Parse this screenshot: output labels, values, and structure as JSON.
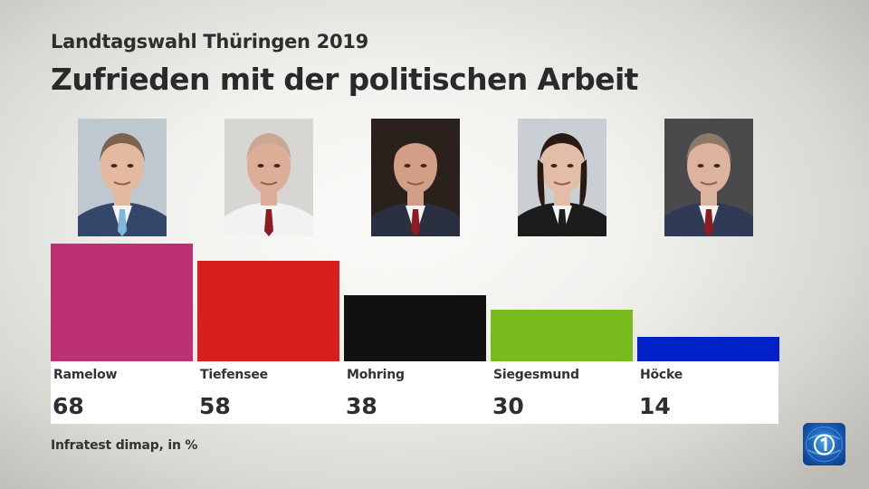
{
  "header": {
    "subtitle": "Landtagswahl Thüringen 2019",
    "title": "Zufrieden mit der politischen Arbeit"
  },
  "candidates": [
    {
      "name": "Ramelow",
      "photo": "Portrait Ramelow"
    },
    {
      "name": "Tiefensee",
      "photo": "Portrait Tiefensee"
    },
    {
      "name": "Mohring",
      "photo": "Portrait Mohring"
    },
    {
      "name": "Siegesmund",
      "photo": "Portrait Siegesmund"
    },
    {
      "name": "Höcke",
      "photo": "Portrait Höcke"
    }
  ],
  "chart_data": {
    "type": "bar",
    "title": "Zufrieden mit der politischen Arbeit",
    "subtitle": "Landtagswahl Thüringen 2019",
    "categories": [
      "Ramelow",
      "Tiefensee",
      "Mohring",
      "Siegesmund",
      "Höcke"
    ],
    "values": [
      68,
      58,
      38,
      30,
      14
    ],
    "colors": [
      "#bc3174",
      "#d71f1d",
      "#111111",
      "#77bb1e",
      "#0020c8"
    ],
    "value_labels": [
      "68",
      "58",
      "38",
      "30",
      "14"
    ],
    "unit": "%",
    "xlabel": "",
    "ylabel": "",
    "ylim": [
      0,
      68
    ],
    "grid": false,
    "legend": "none"
  },
  "footer": {
    "source": "Infratest dimap, in %",
    "logo": "ARD tagesschau logo"
  }
}
